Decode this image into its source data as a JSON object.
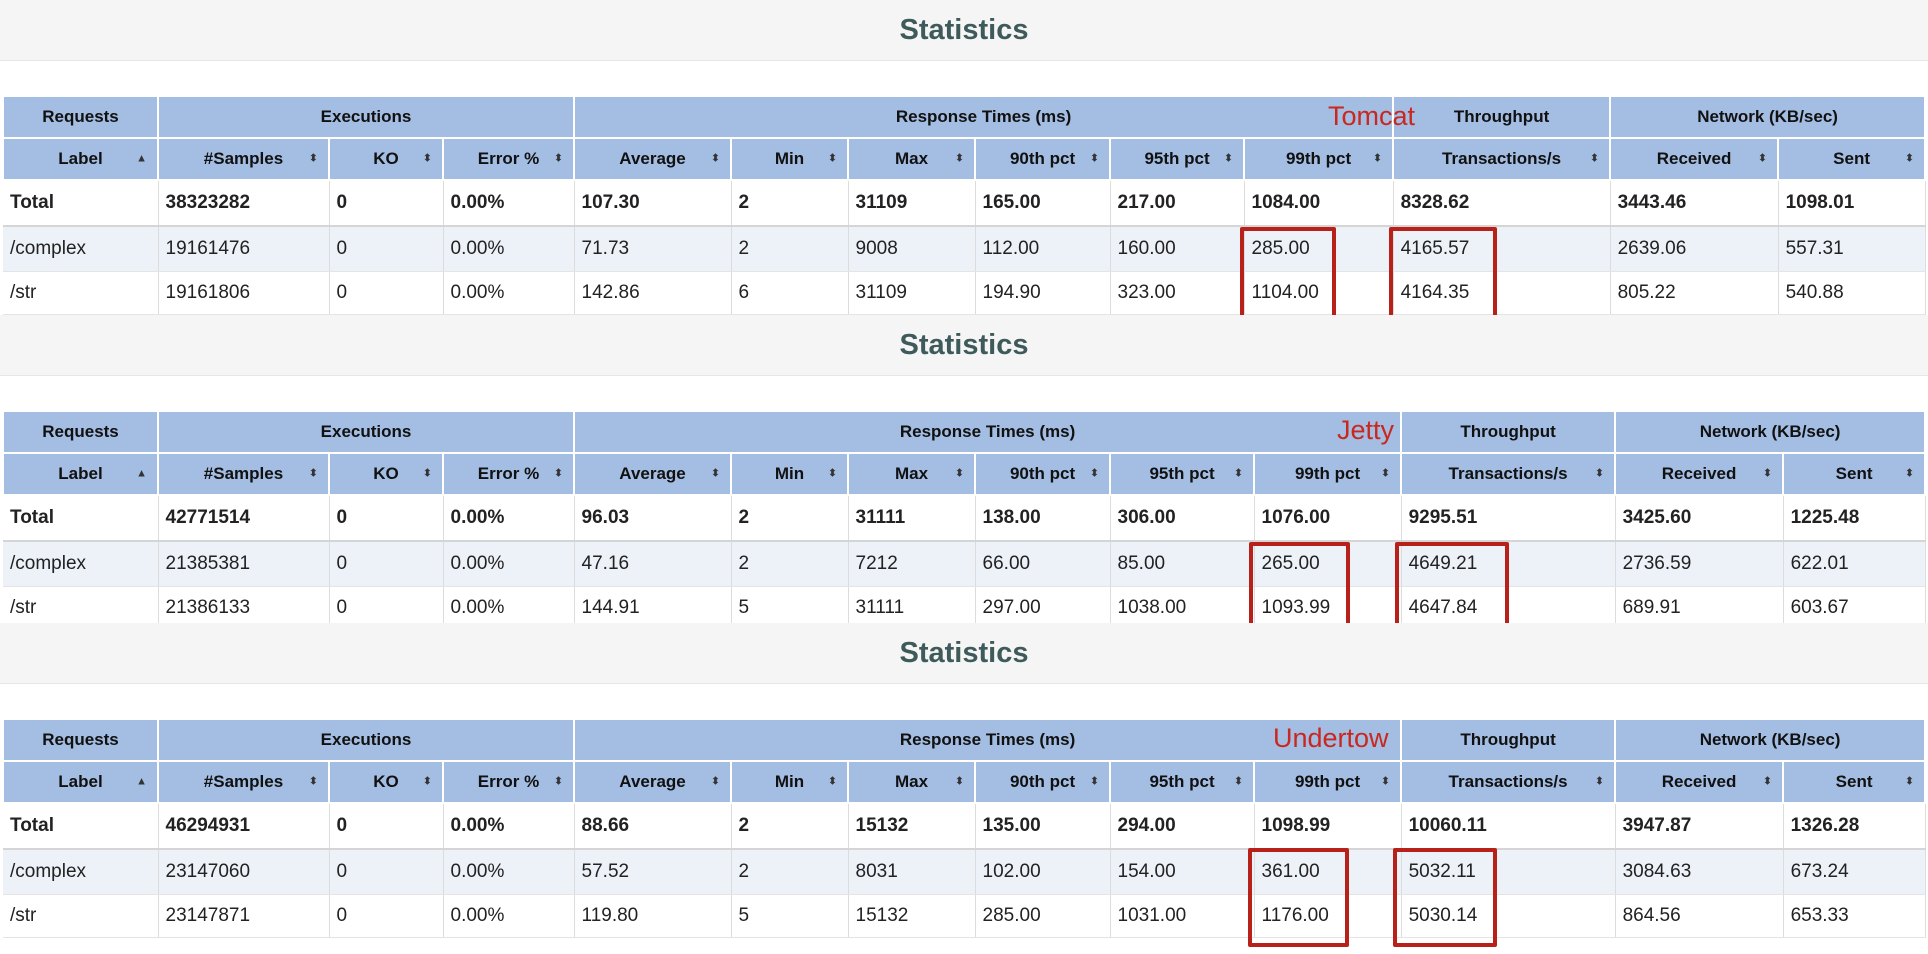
{
  "title": "Statistics",
  "header_groups": [
    "Requests",
    "Executions",
    "Response Times (ms)",
    "Throughput",
    "Network (KB/sec)"
  ],
  "columns": [
    "Label",
    "#Samples",
    "KO",
    "Error %",
    "Average",
    "Min",
    "Max",
    "90th pct",
    "95th pct",
    "99th pct",
    "Transactions/s",
    "Received",
    "Sent"
  ],
  "icons": {
    "sort_asc": "sort-asc-icon",
    "sort_both": "sort-icon"
  },
  "highlight_color": "#b8211a",
  "panels": [
    {
      "server": "Tomcat",
      "rows": [
        [
          "Total",
          "38323282",
          "0",
          "0.00%",
          "107.30",
          "2",
          "31109",
          "165.00",
          "217.00",
          "1084.00",
          "8328.62",
          "3443.46",
          "1098.01"
        ],
        [
          "/complex",
          "19161476",
          "0",
          "0.00%",
          "71.73",
          "2",
          "9008",
          "112.00",
          "160.00",
          "285.00",
          "4165.57",
          "2639.06",
          "557.31"
        ],
        [
          "/str",
          "19161806",
          "0",
          "0.00%",
          "142.86",
          "6",
          "31109",
          "194.90",
          "323.00",
          "1104.00",
          "4164.35",
          "805.22",
          "540.88"
        ]
      ]
    },
    {
      "server": "Jetty",
      "rows": [
        [
          "Total",
          "42771514",
          "0",
          "0.00%",
          "96.03",
          "2",
          "31111",
          "138.00",
          "306.00",
          "1076.00",
          "9295.51",
          "3425.60",
          "1225.48"
        ],
        [
          "/complex",
          "21385381",
          "0",
          "0.00%",
          "47.16",
          "2",
          "7212",
          "66.00",
          "85.00",
          "265.00",
          "4649.21",
          "2736.59",
          "622.01"
        ],
        [
          "/str",
          "21386133",
          "0",
          "0.00%",
          "144.91",
          "5",
          "31111",
          "297.00",
          "1038.00",
          "1093.99",
          "4647.84",
          "689.91",
          "603.67"
        ]
      ]
    },
    {
      "server": "Undertow",
      "rows": [
        [
          "Total",
          "46294931",
          "0",
          "0.00%",
          "88.66",
          "2",
          "15132",
          "135.00",
          "294.00",
          "1098.99",
          "10060.11",
          "3947.87",
          "1326.28"
        ],
        [
          "/complex",
          "23147060",
          "0",
          "0.00%",
          "57.52",
          "2",
          "8031",
          "102.00",
          "154.00",
          "361.00",
          "5032.11",
          "3084.63",
          "673.24"
        ],
        [
          "/str",
          "23147871",
          "0",
          "0.00%",
          "119.80",
          "5",
          "15132",
          "285.00",
          "1031.00",
          "1176.00",
          "5030.14",
          "864.56",
          "653.33"
        ]
      ]
    }
  ]
}
